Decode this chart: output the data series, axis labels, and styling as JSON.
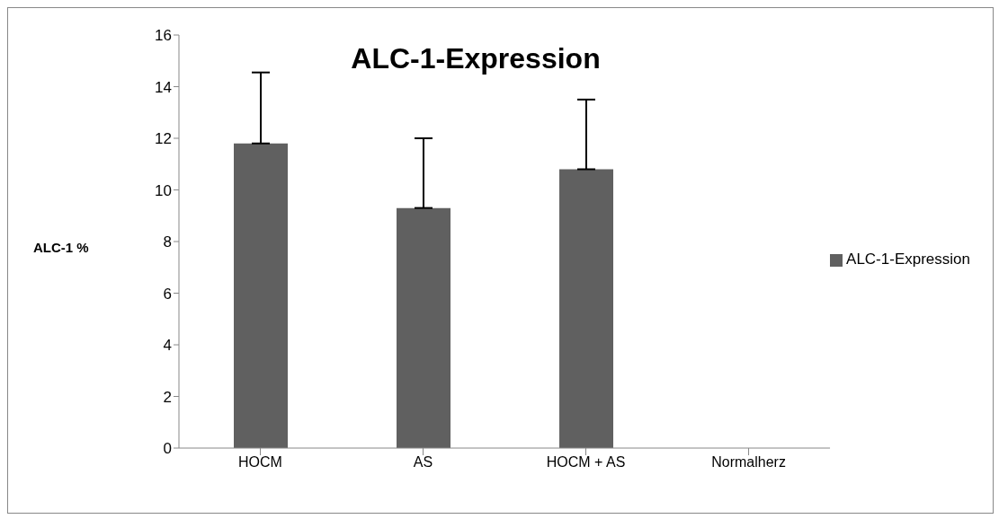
{
  "chart_data": {
    "type": "bar",
    "title": "ALC-1-Expression",
    "ylabel": "ALC-1 %",
    "categories": [
      "HOCM",
      "AS",
      "HOCM + AS",
      "Normalherz"
    ],
    "series": [
      {
        "name": "ALC-1-Expression",
        "color": "#606060",
        "values": [
          11.8,
          9.3,
          10.8,
          0
        ],
        "errors": [
          [
            11.8,
            14.55
          ],
          [
            9.3,
            12
          ],
          [
            10.8,
            13.5
          ],
          null
        ]
      }
    ],
    "ylim": [
      0,
      16
    ],
    "yticks": [
      0,
      2,
      4,
      6,
      8,
      10,
      12,
      14,
      16
    ],
    "grid": false,
    "legend": "right"
  }
}
